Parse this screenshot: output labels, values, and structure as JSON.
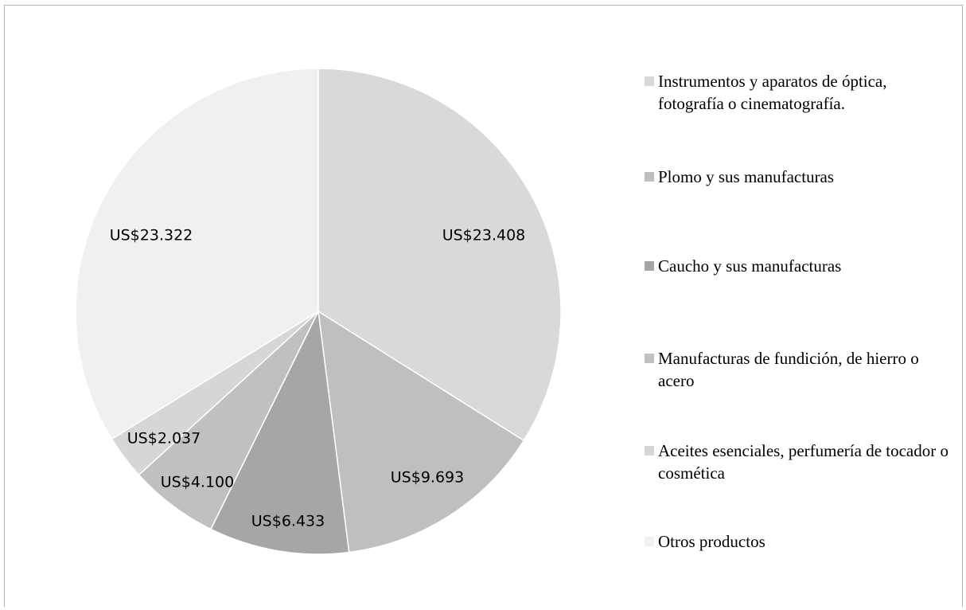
{
  "chart_data": {
    "type": "pie",
    "title": "",
    "slices": [
      {
        "name": "Instrumentos y aparatos de óptica, fotografía o cinematografía.",
        "value": 23408,
        "label": "US$23.408",
        "color": "#d9d9d9"
      },
      {
        "name": "Plomo y sus manufacturas",
        "value": 9693,
        "label": "US$9.693",
        "color": "#bfbfbf"
      },
      {
        "name": "Caucho y sus manufacturas",
        "value": 6433,
        "label": "US$6.433",
        "color": "#a6a6a6"
      },
      {
        "name": "Manufacturas de fundición, de hierro o acero",
        "value": 4100,
        "label": "US$4.100",
        "color": "#c0c0c0"
      },
      {
        "name": "Aceites esenciales, perfumería de tocador o cosmética",
        "value": 2037,
        "label": "US$2.037",
        "color": "#d6d6d6"
      },
      {
        "name": "Otros productos",
        "value": 23322,
        "label": "US$23.322",
        "color": "#f0f0f0"
      }
    ],
    "legend_position": "right"
  }
}
